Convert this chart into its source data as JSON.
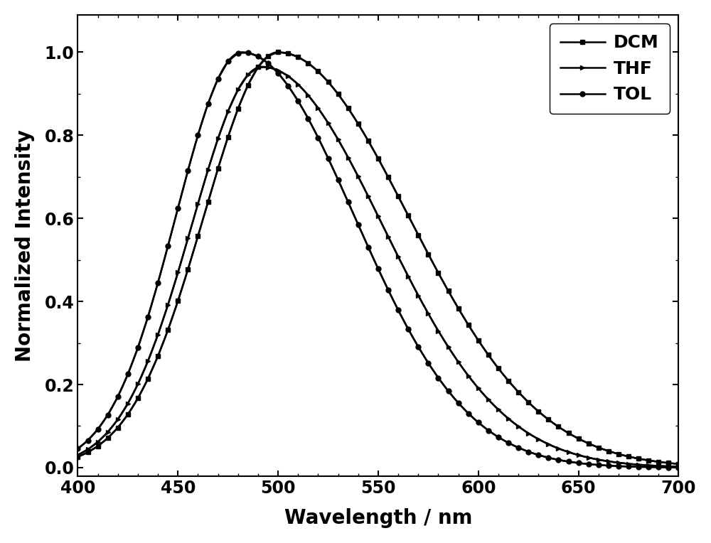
{
  "title": "",
  "xlabel": "Wavelength / nm",
  "ylabel": "Normalized Intensity",
  "xlim": [
    400,
    700
  ],
  "ylim": [
    -0.02,
    1.09
  ],
  "xticks": [
    400,
    450,
    500,
    550,
    600,
    650,
    700
  ],
  "yticks": [
    0.0,
    0.2,
    0.4,
    0.6,
    0.8,
    1.0
  ],
  "background_color": "#ffffff",
  "line_width": 1.8,
  "marker_size": 5,
  "font_size": 20,
  "tick_font_size": 17,
  "legend_font_size": 18,
  "curves": [
    {
      "label": "DCM",
      "mu": 500,
      "sl": 37,
      "sr": 65,
      "amp": 1.0,
      "marker": "s"
    },
    {
      "label": "THF",
      "mu": 492,
      "sl": 35,
      "sr": 60,
      "amp": 0.965,
      "marker": ">"
    },
    {
      "label": "TOL",
      "mu": 482,
      "sl": 33,
      "sr": 56,
      "amp": 1.0,
      "marker": "o"
    }
  ]
}
